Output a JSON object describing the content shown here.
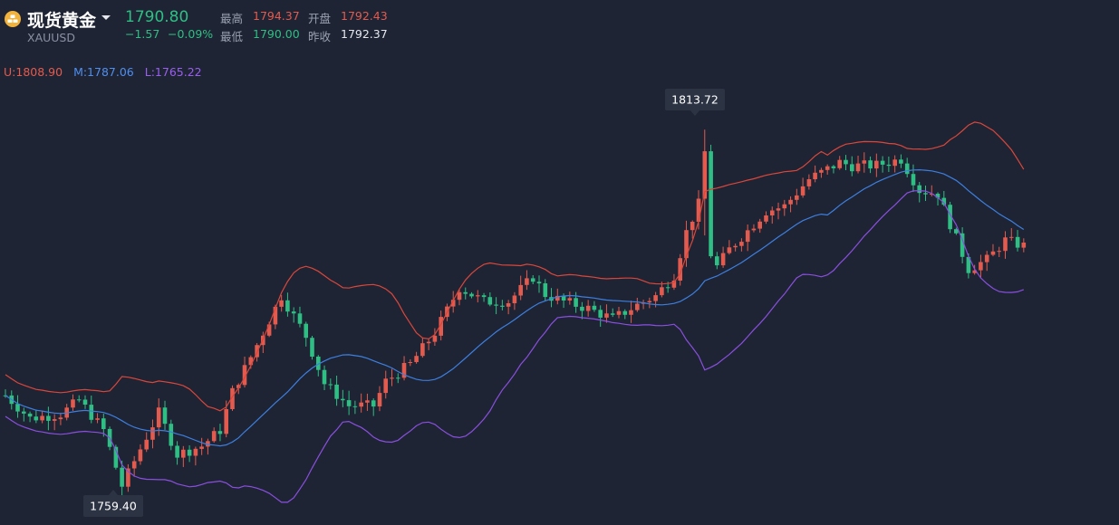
{
  "header": {
    "name": "现货黄金",
    "symbol": "XAUUSD",
    "price": "1790.80",
    "change": "−1.57",
    "change_pct": "−0.09%",
    "stats": {
      "high_label": "最高",
      "high": "1794.37",
      "open_label": "开盘",
      "open": "1792.43",
      "low_label": "最低",
      "low": "1790.00",
      "prev_label": "昨收",
      "prev": "1792.37"
    }
  },
  "boll": {
    "upper": "U:1808.90",
    "middle": "M:1787.06",
    "lower": "L:1765.22"
  },
  "colors": {
    "up": "#e35b4f",
    "down": "#2fbf85",
    "upper_band": "#d9473c",
    "middle_band": "#3d7fe0",
    "lower_band": "#8a4fe0",
    "background": "#1e2433"
  },
  "chart_data": {
    "type": "candlestick",
    "ylim": [
      1757.5,
      1820.0
    ],
    "max_label": "1813.72",
    "min_label": "1759.40",
    "max_index": 114,
    "min_index": 19,
    "candles": [],
    "upper": [],
    "middle": [],
    "lower": []
  }
}
